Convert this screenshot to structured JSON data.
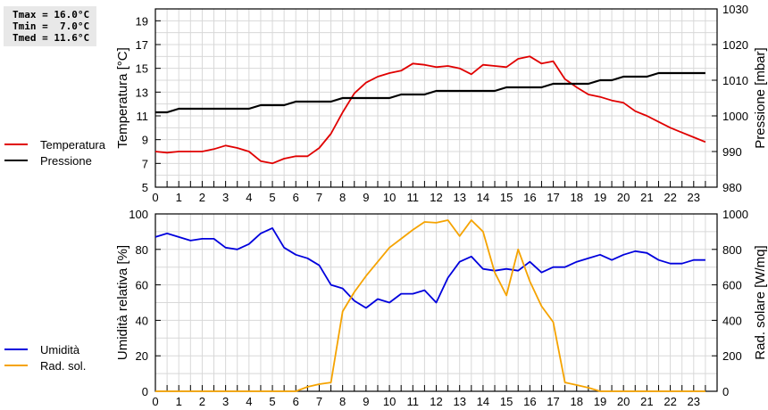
{
  "stats": {
    "tmax": "Tmax = 16.0°C",
    "tmin": "Tmin =  7.0°C",
    "tmed": "Tmed = 11.6°C"
  },
  "legend_top": [
    {
      "label": "Temperatura",
      "color": "#e00000"
    },
    {
      "label": "Pressione",
      "color": "#000000"
    }
  ],
  "legend_bottom": [
    {
      "label": "Umidità",
      "color": "#0000dd"
    },
    {
      "label": "Rad. sol.",
      "color": "#f5a300"
    }
  ],
  "chart_data": [
    {
      "type": "line",
      "title": "",
      "xlabel": "",
      "ylabel": "Temperatura [°C]",
      "ylabel_right": "Pressione [mbar]",
      "xlim": [
        0,
        24
      ],
      "ylim": [
        5,
        20
      ],
      "ylim_right": [
        980,
        1030
      ],
      "x_ticks": [
        "0",
        "1",
        "2",
        "3",
        "4",
        "5",
        "6",
        "7",
        "8",
        "9",
        "10",
        "11",
        "12",
        "13",
        "14",
        "15",
        "16",
        "17",
        "18",
        "19",
        "20",
        "21",
        "22",
        "23"
      ],
      "y_ticks": [
        "5",
        "7",
        "9",
        "11",
        "13",
        "15",
        "17",
        "19"
      ],
      "y_ticks_right": [
        "980",
        "990",
        "1000",
        "1010",
        "1020",
        "1030"
      ],
      "grid": true,
      "legend_position": "left",
      "x": [
        0,
        0.5,
        1,
        1.5,
        2,
        2.5,
        3,
        3.5,
        4,
        4.5,
        5,
        5.5,
        6,
        6.5,
        7,
        7.5,
        8,
        8.5,
        9,
        9.5,
        10,
        10.5,
        11,
        11.5,
        12,
        12.5,
        13,
        13.5,
        14,
        14.5,
        15,
        15.5,
        16,
        16.5,
        17,
        17.5,
        18,
        18.5,
        19,
        19.5,
        20,
        20.5,
        21,
        21.5,
        22,
        22.5,
        23,
        23.5
      ],
      "series": [
        {
          "name": "Temperatura",
          "axis": "left",
          "color": "#e00000",
          "values": [
            8.0,
            7.9,
            8.0,
            8.0,
            8.0,
            8.2,
            8.5,
            8.3,
            8.0,
            7.2,
            7.0,
            7.4,
            7.6,
            7.6,
            8.3,
            9.5,
            11.3,
            12.9,
            13.8,
            14.3,
            14.6,
            14.8,
            15.4,
            15.3,
            15.1,
            15.2,
            15.0,
            14.5,
            15.3,
            15.2,
            15.1,
            15.8,
            16.0,
            15.4,
            15.6,
            14.1,
            13.4,
            12.8,
            12.6,
            12.3,
            12.1,
            11.4,
            11.0,
            10.5,
            10.0,
            9.6,
            9.2,
            8.8
          ]
        },
        {
          "name": "Pressione",
          "axis": "right",
          "color": "#000000",
          "values": [
            1001,
            1001,
            1002,
            1002,
            1002,
            1002,
            1002,
            1002,
            1002,
            1003,
            1003,
            1003,
            1004,
            1004,
            1004,
            1004,
            1005,
            1005,
            1005,
            1005,
            1005,
            1006,
            1006,
            1006,
            1007,
            1007,
            1007,
            1007,
            1007,
            1007,
            1008,
            1008,
            1008,
            1008,
            1009,
            1009,
            1009,
            1009,
            1010,
            1010,
            1011,
            1011,
            1011,
            1012,
            1012,
            1012,
            1012,
            1012
          ]
        }
      ]
    },
    {
      "type": "line",
      "title": "",
      "xlabel": "",
      "ylabel": "Umidità relativa [%]",
      "ylabel_right": "Rad. solare [W/mq]",
      "xlim": [
        0,
        24
      ],
      "ylim": [
        0,
        100
      ],
      "ylim_right": [
        0,
        1000
      ],
      "x_ticks": [
        "0",
        "1",
        "2",
        "3",
        "4",
        "5",
        "6",
        "7",
        "8",
        "9",
        "10",
        "11",
        "12",
        "13",
        "14",
        "15",
        "16",
        "17",
        "18",
        "19",
        "20",
        "21",
        "22",
        "23"
      ],
      "y_ticks": [
        "0",
        "20",
        "40",
        "60",
        "80",
        "100"
      ],
      "y_ticks_right": [
        "0",
        "200",
        "400",
        "600",
        "800",
        "1000"
      ],
      "grid": true,
      "legend_position": "left",
      "x": [
        0,
        0.5,
        1,
        1.5,
        2,
        2.5,
        3,
        3.5,
        4,
        4.5,
        5,
        5.5,
        6,
        6.5,
        7,
        7.5,
        8,
        8.5,
        9,
        9.5,
        10,
        10.5,
        11,
        11.5,
        12,
        12.5,
        13,
        13.5,
        14,
        14.5,
        15,
        15.5,
        16,
        16.5,
        17,
        17.5,
        18,
        18.5,
        19,
        19.5,
        20,
        20.5,
        21,
        21.5,
        22,
        22.5,
        23,
        23.5
      ],
      "series": [
        {
          "name": "Umidità",
          "axis": "left",
          "color": "#0000dd",
          "values": [
            87,
            89,
            87,
            85,
            86,
            86,
            81,
            80,
            83,
            89,
            92,
            81,
            77,
            75,
            71,
            60,
            58,
            51,
            47,
            52,
            50,
            55,
            55,
            57,
            50,
            64,
            73,
            76,
            69,
            68,
            69,
            68,
            73,
            67,
            70,
            70,
            73,
            75,
            77,
            74,
            77,
            79,
            78,
            74,
            72,
            72,
            74,
            74
          ]
        },
        {
          "name": "Rad. sol.",
          "axis": "right",
          "color": "#f5a300",
          "values": [
            0,
            0,
            0,
            0,
            0,
            0,
            0,
            0,
            0,
            0,
            0,
            0,
            0,
            25,
            40,
            50,
            450,
            560,
            650,
            730,
            810,
            860,
            910,
            955,
            950,
            965,
            875,
            965,
            900,
            670,
            540,
            800,
            620,
            480,
            390,
            50,
            35,
            20,
            0,
            0,
            0,
            0,
            0,
            0,
            0,
            0,
            0,
            0
          ]
        }
      ]
    }
  ]
}
